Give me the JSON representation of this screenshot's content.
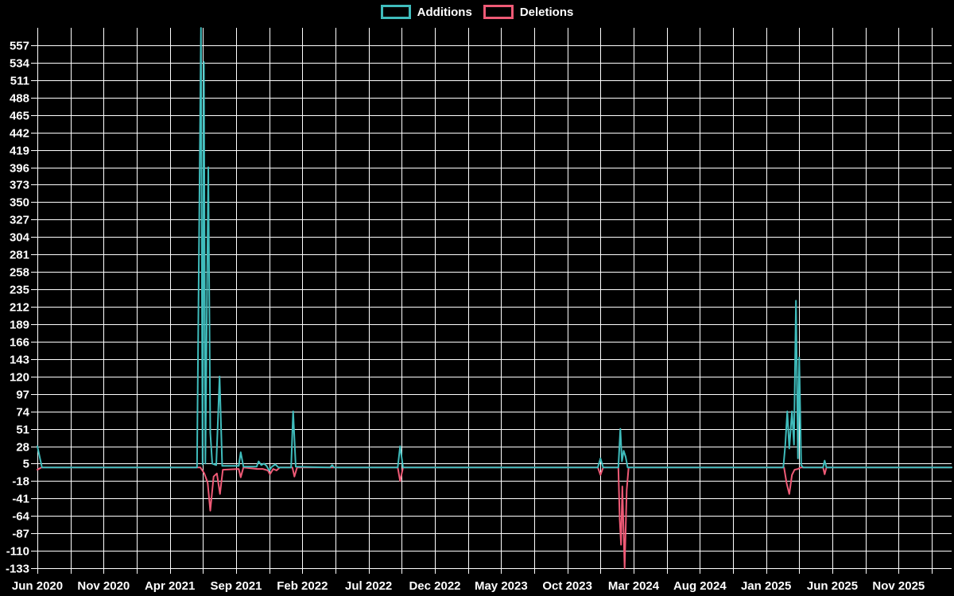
{
  "legend": {
    "items": [
      {
        "label": "Additions",
        "color": "#3fbcbc"
      },
      {
        "label": "Deletions",
        "color": "#ef5a76"
      }
    ]
  },
  "chart_data": {
    "type": "line",
    "title": "",
    "xlabel": "",
    "ylabel": "",
    "background_color": "#000000",
    "grid": {
      "visible": true,
      "color": "#ffffff"
    },
    "legend_position": "top-center",
    "x_axis": {
      "unit": "months since Jun 2020",
      "range_months": [
        0,
        69
      ],
      "label_interval_months": 5,
      "gridline_interval_months": 2.5,
      "tick_labels": [
        "Jun 2020",
        "Nov 2020",
        "Apr 2021",
        "Sep 2021",
        "Feb 2022",
        "Jul 2022",
        "Dec 2022",
        "May 2023",
        "Oct 2023",
        "Mar 2024",
        "Aug 2024",
        "Jan 2025",
        "Jun 2025",
        "Nov 2025"
      ]
    },
    "y_axis": {
      "min": -133,
      "max": 557,
      "step": 23,
      "ticks": [
        557,
        534,
        511,
        488,
        465,
        442,
        419,
        396,
        373,
        350,
        327,
        304,
        281,
        258,
        235,
        212,
        189,
        166,
        143,
        120,
        97,
        74,
        51,
        28,
        5,
        -18,
        -41,
        -64,
        -87,
        -110,
        -133
      ]
    },
    "series": [
      {
        "name": "Additions",
        "color": "#3fbcbc",
        "points_month_value": [
          [
            0,
            28
          ],
          [
            0.35,
            0
          ],
          [
            12.05,
            0
          ],
          [
            12.35,
            580
          ],
          [
            12.47,
            4
          ],
          [
            12.57,
            535
          ],
          [
            12.68,
            5
          ],
          [
            12.9,
            396
          ],
          [
            13.05,
            46
          ],
          [
            13.2,
            5
          ],
          [
            13.5,
            3
          ],
          [
            13.75,
            120
          ],
          [
            13.95,
            2
          ],
          [
            15.2,
            2
          ],
          [
            15.35,
            20
          ],
          [
            15.55,
            1
          ],
          [
            16.55,
            1
          ],
          [
            16.7,
            8
          ],
          [
            16.9,
            3
          ],
          [
            17.1,
            5
          ],
          [
            17.3,
            2
          ],
          [
            17.5,
            -4
          ],
          [
            17.7,
            1
          ],
          [
            17.95,
            4
          ],
          [
            18.2,
            0
          ],
          [
            19.15,
            0
          ],
          [
            19.3,
            74
          ],
          [
            19.5,
            1
          ],
          [
            22.1,
            0
          ],
          [
            22.25,
            3
          ],
          [
            22.4,
            0
          ],
          [
            27.2,
            0
          ],
          [
            27.38,
            28
          ],
          [
            27.6,
            0
          ],
          [
            42.3,
            0
          ],
          [
            42.5,
            12
          ],
          [
            42.7,
            0
          ],
          [
            43.85,
            0
          ],
          [
            44.0,
            51
          ],
          [
            44.12,
            8
          ],
          [
            44.25,
            22
          ],
          [
            44.4,
            14
          ],
          [
            44.55,
            0
          ],
          [
            56.3,
            0
          ],
          [
            56.45,
            30
          ],
          [
            56.6,
            74
          ],
          [
            56.75,
            25
          ],
          [
            56.95,
            74
          ],
          [
            57.1,
            30
          ],
          [
            57.25,
            220
          ],
          [
            57.4,
            12
          ],
          [
            57.5,
            145
          ],
          [
            57.65,
            3
          ],
          [
            57.8,
            0
          ],
          [
            59.3,
            0
          ],
          [
            59.42,
            9
          ],
          [
            59.55,
            0
          ],
          [
            69,
            0
          ]
        ]
      },
      {
        "name": "Deletions",
        "color": "#ef5a76",
        "points_month_value": [
          [
            0,
            -3
          ],
          [
            0.3,
            0
          ],
          [
            12.3,
            0
          ],
          [
            12.45,
            -4
          ],
          [
            12.6,
            -8
          ],
          [
            12.85,
            -20
          ],
          [
            13.05,
            -57
          ],
          [
            13.3,
            -12
          ],
          [
            13.55,
            -8
          ],
          [
            13.78,
            -35
          ],
          [
            14.0,
            -3
          ],
          [
            15.2,
            -2
          ],
          [
            15.35,
            -13
          ],
          [
            15.55,
            0
          ],
          [
            16.6,
            -2
          ],
          [
            17.0,
            -2
          ],
          [
            17.4,
            -4
          ],
          [
            17.55,
            -9
          ],
          [
            17.8,
            -2
          ],
          [
            18.05,
            -4
          ],
          [
            18.3,
            0
          ],
          [
            19.25,
            0
          ],
          [
            19.4,
            -12
          ],
          [
            19.6,
            0
          ],
          [
            27.2,
            0
          ],
          [
            27.38,
            -18
          ],
          [
            27.6,
            0
          ],
          [
            42.3,
            0
          ],
          [
            42.5,
            -10
          ],
          [
            42.7,
            0
          ],
          [
            43.85,
            0
          ],
          [
            43.95,
            -68
          ],
          [
            44.05,
            -102
          ],
          [
            44.15,
            -25
          ],
          [
            44.32,
            -133
          ],
          [
            44.48,
            -30
          ],
          [
            44.62,
            0
          ],
          [
            56.35,
            0
          ],
          [
            56.55,
            -21
          ],
          [
            56.75,
            -35
          ],
          [
            56.95,
            -10
          ],
          [
            57.15,
            -3
          ],
          [
            57.4,
            -2
          ],
          [
            57.6,
            0
          ],
          [
            59.3,
            0
          ],
          [
            59.42,
            -9
          ],
          [
            59.55,
            0
          ],
          [
            69,
            0
          ]
        ]
      }
    ]
  }
}
